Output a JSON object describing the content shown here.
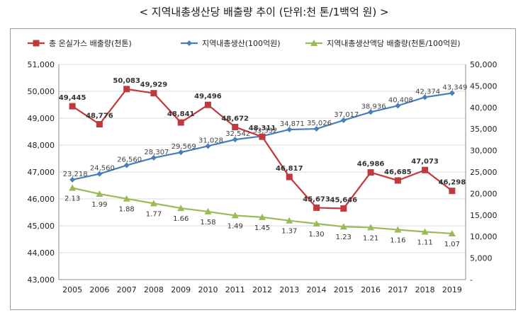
{
  "title": "< 지역내총생산당 배출량 추이 (단위:천 톤/1백억 원) >",
  "chart_data": {
    "type": "line",
    "legend_position": "top",
    "grid": true,
    "x": [
      "2005",
      "2006",
      "2007",
      "2008",
      "2009",
      "2010",
      "2011",
      "2012",
      "2013",
      "2014",
      "2015",
      "2016",
      "2017",
      "2018",
      "2019"
    ],
    "y_left": {
      "range": [
        43000,
        51000
      ],
      "ticks": [
        43000,
        44000,
        45000,
        46000,
        47000,
        48000,
        49000,
        50000,
        51000
      ],
      "tick_labels": [
        "43,000",
        "44,000",
        "45,000",
        "46,000",
        "47,000",
        "48,000",
        "49,000",
        "50,000",
        "51,000"
      ]
    },
    "y_right": {
      "range": [
        0,
        50000
      ],
      "ticks": [
        0,
        5000,
        10000,
        15000,
        20000,
        25000,
        30000,
        35000,
        40000,
        45000,
        50000
      ],
      "tick_labels": [
        "-",
        "5,000",
        "10,000",
        "15,000",
        "20,000",
        "25,000",
        "30,000",
        "35,000",
        "40,000",
        "45,000",
        "50,000"
      ]
    },
    "series": [
      {
        "name": "총 온실가스 배출량(천톤)",
        "axis": "left",
        "color": "#c0393b",
        "marker": "square",
        "values": [
          49445,
          48776,
          50083,
          49929,
          48841,
          49496,
          48672,
          48311,
          46817,
          45673,
          45646,
          46986,
          46685,
          47073,
          46298
        ],
        "labels": [
          "49,445",
          "48,776",
          "50,083",
          "49,929",
          "48,841",
          "49,496",
          "48,672",
          "48,311",
          "46,817",
          "45,673",
          "45,646",
          "46,986",
          "46,685",
          "47,073",
          "46,298"
        ]
      },
      {
        "name": "지역내총생산(100억원)",
        "axis": "right",
        "color": "#4a7ebb",
        "marker": "diamond",
        "values": [
          23218,
          24560,
          26560,
          28307,
          29569,
          31028,
          32542,
          33332,
          34871,
          35026,
          37017,
          38936,
          40408,
          42374,
          43349
        ],
        "labels": [
          "23,218",
          "24,560",
          "26,560",
          "28,307",
          "29,569",
          "31,028",
          "32,542",
          "33,332",
          "34,871",
          "35,026",
          "37,017",
          "38,936",
          "40,408",
          "42,374",
          "43,349"
        ]
      },
      {
        "name": "지역내총생산액당 배출량(천톤/100억원)",
        "axis": "right",
        "color": "#9bbb59",
        "marker": "triangle",
        "values": [
          2.13,
          1.99,
          1.88,
          1.77,
          1.66,
          1.58,
          1.49,
          1.45,
          1.37,
          1.3,
          1.23,
          1.21,
          1.16,
          1.11,
          1.07
        ],
        "labels": [
          "2.13",
          "1.99",
          "1.88",
          "1.77",
          "1.66",
          "1.58",
          "1.49",
          "1.45",
          "1.37",
          "1.30",
          "1.23",
          "1.21",
          "1.16",
          "1.11",
          "1.07"
        ]
      }
    ]
  }
}
